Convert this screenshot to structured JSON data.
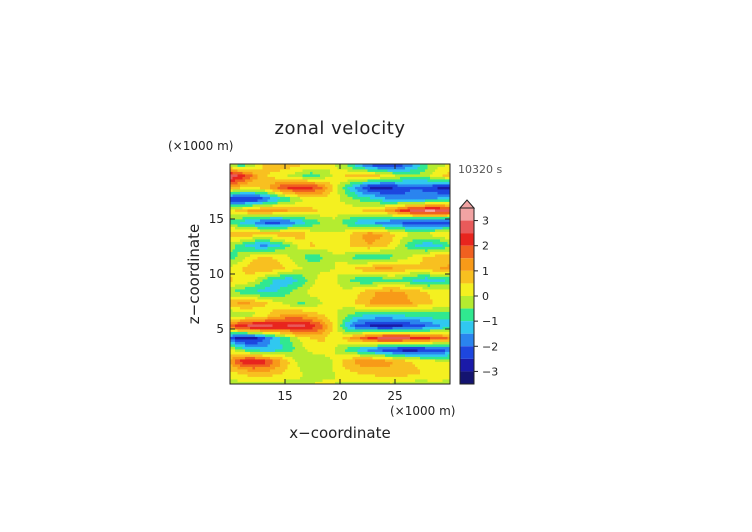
{
  "chart_data": {
    "type": "heatmap",
    "title": "zonal velocity",
    "xlabel": "x−coordinate",
    "ylabel": "z−coordinate",
    "x_unit": "(×1000 m)",
    "y_unit": "(×1000 m)",
    "time_label": "10320 s",
    "xlim": [
      10,
      30
    ],
    "ylim": [
      0,
      20
    ],
    "x_ticks": [
      "15",
      "20",
      "25"
    ],
    "y_ticks": [
      "5",
      "10",
      "15"
    ],
    "colorbar": {
      "tick_labels": [
        "3",
        "2",
        "1",
        "0",
        "−1",
        "−2",
        "−3"
      ],
      "tick_values": [
        3,
        2,
        1,
        0,
        -1,
        -2,
        -3
      ],
      "range": [
        -3.5,
        3.5
      ],
      "extend": "max",
      "levels": [
        {
          "value": 3.25,
          "color": "#f2a3a3"
        },
        {
          "value": 2.75,
          "color": "#e85a5a"
        },
        {
          "value": 2.25,
          "color": "#e8251e"
        },
        {
          "value": 1.75,
          "color": "#f06020"
        },
        {
          "value": 1.25,
          "color": "#f89a18"
        },
        {
          "value": 0.75,
          "color": "#f8c020"
        },
        {
          "value": 0.25,
          "color": "#f4f020"
        },
        {
          "value": -0.25,
          "color": "#b4ec30"
        },
        {
          "value": -0.75,
          "color": "#30e890"
        },
        {
          "value": -1.25,
          "color": "#30c8f0"
        },
        {
          "value": -1.75,
          "color": "#2a84ef"
        },
        {
          "value": -2.25,
          "color": "#1d46df"
        },
        {
          "value": -2.75,
          "color": "#1a1aa8"
        },
        {
          "value": -3.25,
          "color": "#141470"
        }
      ]
    },
    "field": {
      "x_range": [
        10,
        30
      ],
      "z_range": [
        0,
        20
      ],
      "description": "u(x,z) grid, rows from z=0 (bottom) to z=20 (top), columns from x=10 to x=30",
      "values": [
        [
          -0.3,
          -0.2,
          -0.1,
          -0.2,
          -0.3,
          -0.2,
          -0.1,
          0.0,
          0.1,
          0.0,
          -0.1,
          -0.2,
          -0.3,
          -0.2,
          -0.1,
          -0.2,
          -0.3,
          -0.2,
          -0.1,
          -0.2
        ],
        [
          0.3,
          0.6,
          0.8,
          0.9,
          0.7,
          0.4,
          0.1,
          -0.2,
          -0.2,
          0.0,
          0.3,
          0.5,
          0.7,
          0.8,
          0.9,
          0.8,
          0.6,
          0.4,
          0.3,
          0.2
        ],
        [
          1.2,
          2.2,
          2.6,
          2.2,
          1.4,
          0.6,
          -0.2,
          -0.5,
          -0.4,
          0.1,
          0.8,
          1.2,
          1.4,
          1.3,
          1.0,
          0.7,
          0.4,
          0.2,
          0.1,
          0.0
        ],
        [
          0.1,
          -0.6,
          -1.2,
          -1.4,
          -1.2,
          -0.8,
          -0.3,
          0.2,
          0.4,
          0.0,
          -0.6,
          -1.2,
          -1.8,
          -2.2,
          -2.6,
          -2.8,
          -2.8,
          -2.6,
          -2.4,
          -2.0
        ],
        [
          -2.2,
          -3.0,
          -2.8,
          -2.0,
          -1.2,
          -0.6,
          0.1,
          0.5,
          0.6,
          0.2,
          0.7,
          1.4,
          2.2,
          2.6,
          2.8,
          2.7,
          2.4,
          2.1,
          1.8,
          1.4
        ],
        [
          1.8,
          2.6,
          2.9,
          2.8,
          2.6,
          2.6,
          2.8,
          2.4,
          1.6,
          0.3,
          -1.2,
          -2.2,
          -2.6,
          -2.8,
          -2.8,
          -2.6,
          -2.4,
          -2.0,
          -1.6,
          -1.2
        ],
        [
          -0.6,
          -0.4,
          -0.2,
          0.2,
          0.8,
          1.2,
          1.2,
          0.8,
          0.5,
          0.1,
          -0.4,
          -0.8,
          -1.0,
          -1.1,
          -1.0,
          -0.9,
          -0.8,
          -0.7,
          -0.7,
          -0.8
        ],
        [
          0.8,
          1.2,
          1.0,
          0.6,
          0.2,
          -0.2,
          -0.6,
          -0.4,
          0.0,
          0.1,
          0.2,
          0.6,
          1.0,
          1.3,
          1.4,
          1.2,
          0.9,
          0.6,
          0.4,
          0.2
        ],
        [
          -0.4,
          -0.8,
          -1.0,
          -1.2,
          -1.0,
          -0.6,
          -0.2,
          0.2,
          0.3,
          0.1,
          0.1,
          0.4,
          0.8,
          1.1,
          1.2,
          1.0,
          0.8,
          0.5,
          0.3,
          0.2
        ],
        [
          0.6,
          0.4,
          0.2,
          -0.6,
          -1.2,
          -1.4,
          -1.0,
          -0.2,
          0.3,
          0.1,
          -0.3,
          -0.8,
          -1.0,
          -0.9,
          -0.6,
          -0.8,
          -1.2,
          -1.4,
          -1.2,
          -0.9
        ],
        [
          0.2,
          0.5,
          0.8,
          0.9,
          0.8,
          0.4,
          0.1,
          -0.2,
          -0.1,
          0.0,
          0.2,
          0.6,
          1.0,
          1.2,
          1.1,
          0.8,
          0.6,
          0.8,
          1.0,
          1.1
        ],
        [
          -0.8,
          -0.3,
          0.4,
          0.6,
          0.4,
          0.1,
          -0.4,
          -0.8,
          -0.6,
          0.0,
          -0.2,
          -0.8,
          -1.1,
          -1.0,
          -0.6,
          -0.2,
          0.2,
          0.6,
          0.8,
          0.8
        ],
        [
          -0.2,
          -0.8,
          -1.4,
          -1.6,
          -1.2,
          -0.6,
          0.2,
          0.6,
          0.4,
          0.1,
          0.4,
          0.8,
          1.0,
          0.8,
          0.4,
          -0.4,
          -1.0,
          -1.4,
          -1.2,
          -0.6
        ],
        [
          0.9,
          1.0,
          0.8,
          0.7,
          0.8,
          1.0,
          0.8,
          0.3,
          0.1,
          0.0,
          0.3,
          0.9,
          1.2,
          1.1,
          0.6,
          0.2,
          0.0,
          0.1,
          0.4,
          0.6
        ],
        [
          -0.8,
          -1.2,
          -1.6,
          -2.2,
          -2.4,
          -2.0,
          -1.4,
          -0.9,
          -0.5,
          0.0,
          -0.8,
          -1.2,
          -1.6,
          -1.8,
          -2.0,
          -2.2,
          -2.4,
          -2.6,
          -2.6,
          -2.4
        ],
        [
          0.2,
          0.8,
          1.2,
          1.4,
          1.2,
          1.0,
          0.8,
          0.6,
          0.4,
          0.1,
          0.3,
          0.4,
          0.6,
          0.8,
          1.4,
          2.2,
          2.8,
          3.1,
          3.0,
          2.6
        ],
        [
          -2.4,
          -2.8,
          -2.6,
          -2.2,
          -1.4,
          -0.8,
          -0.2,
          0.2,
          0.3,
          0.2,
          -0.2,
          -0.6,
          -0.8,
          -1.2,
          -1.6,
          -1.8,
          -1.8,
          -1.6,
          -1.4,
          -1.2
        ],
        [
          1.0,
          0.6,
          0.4,
          0.8,
          1.6,
          2.2,
          2.4,
          2.2,
          1.6,
          0.4,
          -0.8,
          -1.8,
          -2.6,
          -2.8,
          -2.6,
          -2.2,
          -2.0,
          -2.2,
          -2.6,
          -2.8
        ],
        [
          3.0,
          2.4,
          1.4,
          0.6,
          0.2,
          0.0,
          -0.4,
          -0.8,
          -0.4,
          0.1,
          0.6,
          0.8,
          0.9,
          0.6,
          0.2,
          -0.2,
          -0.4,
          -0.2,
          0.4,
          0.8
        ],
        [
          -0.6,
          -1.0,
          -0.4,
          0.6,
          1.0,
          0.8,
          0.6,
          0.4,
          0.2,
          0.1,
          -0.6,
          -1.4,
          -2.2,
          -2.6,
          -2.6,
          -2.2,
          -1.4,
          -0.6,
          -0.2,
          0.0
        ]
      ]
    }
  }
}
